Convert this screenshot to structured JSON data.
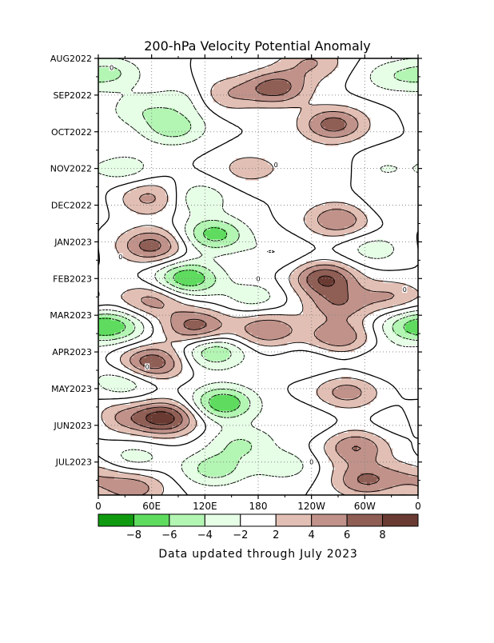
{
  "chart_data": {
    "type": "heatmap",
    "title": "200-hPa Velocity Potential Anomaly",
    "footer": "Data updated through July 2023",
    "x_tick_labels": [
      "0",
      "60E",
      "120E",
      "180",
      "120W",
      "60W",
      "0"
    ],
    "x_tick_longitudes": [
      0,
      60,
      120,
      180,
      240,
      300,
      360
    ],
    "xlim": [
      0,
      360
    ],
    "y_tick_labels": [
      "AUG2022",
      "SEP2022",
      "OCT2022",
      "NOV2022",
      "DEC2022",
      "JAN2023",
      "FEB2023",
      "MAR2023",
      "APR2023",
      "MAY2023",
      "JUN2023",
      "JUL2023"
    ],
    "y_tick_months": [
      0,
      1,
      2,
      3,
      4,
      5,
      6,
      7,
      8,
      9,
      10,
      11
    ],
    "ylim": [
      0,
      11.9
    ],
    "y_inverted": true,
    "grid": true,
    "contour_interval": 2,
    "zero_contour_label": "0",
    "colorbar": {
      "levels": [
        -10,
        -8,
        -6,
        -4,
        -2,
        2,
        4,
        6,
        8,
        10
      ],
      "tick_labels": [
        "-8",
        "-6",
        "-4",
        "-2",
        "2",
        "4",
        "6",
        "8"
      ],
      "colors": [
        "#109a10",
        "#5fdc5f",
        "#b3f5b3",
        "#e6fde6",
        "#ffffff",
        "#e2bfb4",
        "#c0928a",
        "#8f5e55",
        "#6a3b33"
      ]
    },
    "anomaly_centers": [
      {
        "lon": 15,
        "month": 0.4,
        "value": -4
      },
      {
        "lon": 45,
        "month": 1.4,
        "value": -3
      },
      {
        "lon": 100,
        "month": 1.1,
        "value": -3
      },
      {
        "lon": 85,
        "month": 1.9,
        "value": -5
      },
      {
        "lon": 140,
        "month": 1.0,
        "value": 4
      },
      {
        "lon": 200,
        "month": 0.8,
        "value": 7
      },
      {
        "lon": 265,
        "month": 1.8,
        "value": 7
      },
      {
        "lon": 330,
        "month": 0.5,
        "value": -3
      },
      {
        "lon": 240,
        "month": 0.1,
        "value": 4
      },
      {
        "lon": 30,
        "month": 3.0,
        "value": -3
      },
      {
        "lon": 170,
        "month": 3.0,
        "value": 3
      },
      {
        "lon": 250,
        "month": 3.0,
        "value": 2
      },
      {
        "lon": 320,
        "month": 3.0,
        "value": -2
      },
      {
        "lon": 60,
        "month": 3.8,
        "value": 5
      },
      {
        "lon": 110,
        "month": 3.8,
        "value": -4
      },
      {
        "lon": 270,
        "month": 4.4,
        "value": 6
      },
      {
        "lon": 330,
        "month": 4.0,
        "value": -2
      },
      {
        "lon": 60,
        "month": 5.1,
        "value": 7
      },
      {
        "lon": 130,
        "month": 4.8,
        "value": -7
      },
      {
        "lon": 200,
        "month": 5.3,
        "value": -2
      },
      {
        "lon": 310,
        "month": 5.2,
        "value": -3
      },
      {
        "lon": 100,
        "month": 6.0,
        "value": -8
      },
      {
        "lon": 60,
        "month": 6.6,
        "value": 5
      },
      {
        "lon": 255,
        "month": 6.0,
        "value": 8
      },
      {
        "lon": 270,
        "month": 6.7,
        "value": 5
      },
      {
        "lon": 330,
        "month": 6.5,
        "value": 4
      },
      {
        "lon": 175,
        "month": 6.5,
        "value": -3
      },
      {
        "lon": 20,
        "month": 7.3,
        "value": -6
      },
      {
        "lon": 110,
        "month": 7.3,
        "value": 7
      },
      {
        "lon": 190,
        "month": 7.4,
        "value": 6
      },
      {
        "lon": 270,
        "month": 7.6,
        "value": 6
      },
      {
        "lon": 345,
        "month": 7.3,
        "value": -4
      },
      {
        "lon": 130,
        "month": 8.0,
        "value": -6
      },
      {
        "lon": 60,
        "month": 8.3,
        "value": 8
      },
      {
        "lon": 30,
        "month": 8.8,
        "value": -4
      },
      {
        "lon": 240,
        "month": 8.2,
        "value": -2
      },
      {
        "lon": 320,
        "month": 8.3,
        "value": -2
      },
      {
        "lon": 280,
        "month": 9.1,
        "value": 5
      },
      {
        "lon": 140,
        "month": 9.4,
        "value": -8
      },
      {
        "lon": 20,
        "month": 9.8,
        "value": 4
      },
      {
        "lon": 75,
        "month": 9.8,
        "value": 9
      },
      {
        "lon": 230,
        "month": 9.9,
        "value": -2
      },
      {
        "lon": 345,
        "month": 9.9,
        "value": -2
      },
      {
        "lon": 160,
        "month": 10.5,
        "value": -4
      },
      {
        "lon": 290,
        "month": 10.6,
        "value": 6
      },
      {
        "lon": 40,
        "month": 10.9,
        "value": -3
      },
      {
        "lon": 130,
        "month": 11.2,
        "value": -5
      },
      {
        "lon": 210,
        "month": 11.1,
        "value": -3
      },
      {
        "lon": 40,
        "month": 11.7,
        "value": 5
      },
      {
        "lon": 300,
        "month": 11.5,
        "value": 6
      },
      {
        "lon": 355,
        "month": 11.4,
        "value": 3
      }
    ]
  }
}
